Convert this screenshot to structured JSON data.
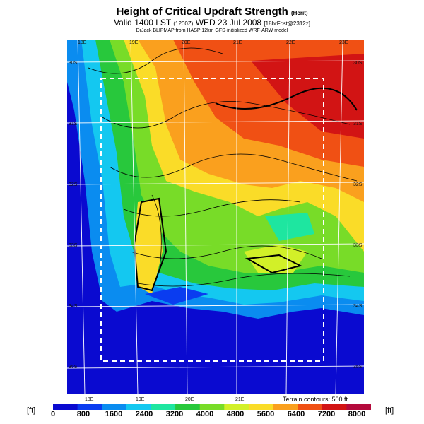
{
  "header": {
    "title": "Height of Critical Updraft Strength",
    "title_note": "(Hcrit)",
    "valid_line": "Valid 1400 LST",
    "valid_code": "(1200Z)",
    "date": "WED 23 Jul 2008",
    "run_info": "[18hrFcst@2312z]",
    "credit": "DrJack BLIPMAP from HASP 12km GFS-initialized WRF-ARW model"
  },
  "map": {
    "lon_labels": [
      "18E",
      "19E",
      "20E",
      "21E",
      "22E",
      "23E"
    ],
    "lat_labels": [
      "30S",
      "31S",
      "32S",
      "33S",
      "34S",
      "35S"
    ],
    "terrain_note": "Terrain contours: 500 ft"
  },
  "legend": {
    "unit_left": "[ft]",
    "unit_right": "[ft]",
    "ticks": [
      "0",
      "800",
      "1600",
      "2400",
      "3200",
      "4000",
      "4800",
      "5600",
      "6400",
      "7200",
      "8000"
    ],
    "colors": [
      "#0a0ad0",
      "#0a3cf0",
      "#0a8cf0",
      "#14c8f0",
      "#1ee6a0",
      "#28c83c",
      "#78dc28",
      "#d2f028",
      "#fadc28",
      "#faa01e",
      "#f05014",
      "#d21414",
      "#b40a3c"
    ]
  }
}
